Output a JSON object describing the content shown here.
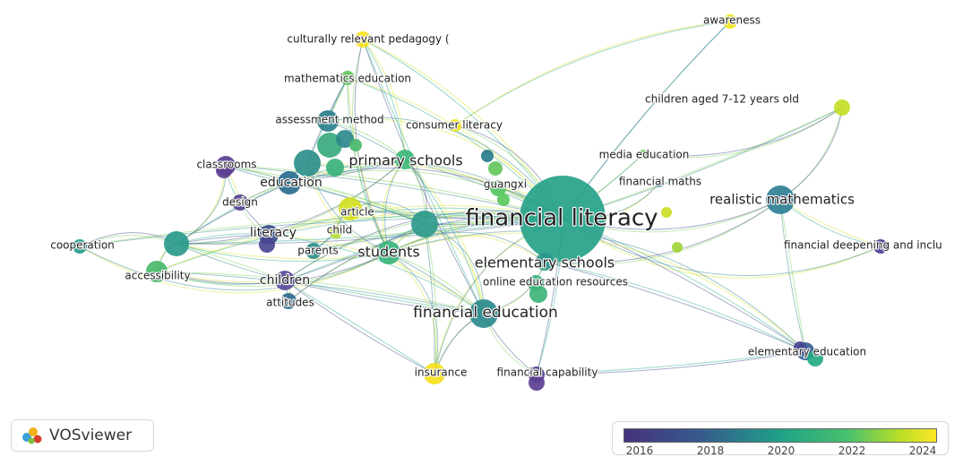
{
  "app": {
    "name": "VOSviewer",
    "logo_icon": "vosviewer-logo-icon"
  },
  "palette": {
    "2016": "#46327e",
    "2018": "#365c8d",
    "2020": "#1fa187",
    "2022": "#4ac16d",
    "2024": "#fde725",
    "edge_colors": [
      "#3f4a8a",
      "#2e7f8e",
      "#22a884",
      "#7ad151",
      "#d6e21e"
    ]
  },
  "color_scale": {
    "min_year": 2015.6,
    "max_year": 2024.3,
    "ticks": [
      "2016",
      "2018",
      "2020",
      "2022",
      "2024"
    ]
  },
  "network": {
    "nodes": [
      {
        "id": "financial-literacy",
        "label": "financial literacy",
        "color": "#26a289",
        "label_size": "xl"
      },
      {
        "id": "financial-education",
        "label": "financial education",
        "color": "#2a8a8c",
        "label_size": "l"
      },
      {
        "id": "elementary-schools",
        "label": "elementary schools",
        "color": "#2c968b",
        "label_size": "l"
      },
      {
        "id": "primary-schools",
        "label": "primary schools",
        "color": "#3cb779",
        "label_size": "l"
      },
      {
        "id": "students",
        "label": "students",
        "color": "#35b47b",
        "label_size": "l"
      },
      {
        "id": "realistic-mathematics",
        "label": "realistic mathematics",
        "color": "#2f7f95",
        "label_size": "l"
      },
      {
        "id": "education",
        "label": "education",
        "color": "#2a6c8e",
        "label_size": "m"
      },
      {
        "id": "literacy",
        "label": "literacy",
        "color": "#3a4e8c",
        "label_size": "m"
      },
      {
        "id": "children",
        "label": "children",
        "color": "#5b4a9c",
        "label_size": "m"
      },
      {
        "id": "awareness",
        "label": "awareness",
        "color": "#efe51a",
        "label_size": "s"
      },
      {
        "id": "culturally-relevant-pedagogy",
        "label": "culturally relevant pedagogy (",
        "color": "#f6e11b",
        "label_size": "s"
      },
      {
        "id": "mathematics-education",
        "label": "mathematics education",
        "color": "#5fc65d",
        "label_size": "s"
      },
      {
        "id": "children-aged",
        "label": "children aged 7-12 years old",
        "color": "#c6de26",
        "label_size": "s"
      },
      {
        "id": "assessment-method",
        "label": "assessment method",
        "color": "#2d7f8d",
        "label_size": "s"
      },
      {
        "id": "consumer-literacy",
        "label": "consumer literacy",
        "color": "#f2e21e",
        "label_size": "s"
      },
      {
        "id": "media-education",
        "label": "media education",
        "color": "#6ac85a",
        "label_size": "s"
      },
      {
        "id": "classrooms",
        "label": "classrooms",
        "color": "#5a3f93",
        "label_size": "s"
      },
      {
        "id": "guangxi",
        "label": "guangxi",
        "color": "#56c462",
        "label_size": "s"
      },
      {
        "id": "financial-maths",
        "label": "financial maths",
        "color": "#2f7a8e",
        "label_size": "s"
      },
      {
        "id": "design",
        "label": "design",
        "color": "#52418f",
        "label_size": "s"
      },
      {
        "id": "article",
        "label": "article",
        "color": "#d2e01f",
        "label_size": "s"
      },
      {
        "id": "child",
        "label": "child",
        "color": "#b7db2b",
        "label_size": "s"
      },
      {
        "id": "cooperation",
        "label": "cooperation",
        "color": "#1f9a87",
        "label_size": "s"
      },
      {
        "id": "parents",
        "label": "parents",
        "color": "#2a8c8a",
        "label_size": "s"
      },
      {
        "id": "financial-deepening",
        "label": "financial deepening and inclu",
        "color": "#4a3f92",
        "label_size": "s"
      },
      {
        "id": "accessibility",
        "label": "accessibility",
        "color": "#4ab96c",
        "label_size": "s"
      },
      {
        "id": "online-education-resources",
        "label": "online education resources",
        "color": "#3aae80",
        "label_size": "s"
      },
      {
        "id": "attitudes",
        "label": "attitudes",
        "color": "#2d6c8e",
        "label_size": "s"
      },
      {
        "id": "elementary-education",
        "label": "elementary education",
        "color": "#3a5f96",
        "label_size": "s"
      },
      {
        "id": "insurance",
        "label": "insurance",
        "color": "#f5df1c",
        "label_size": "s"
      },
      {
        "id": "financial-capability",
        "label": "financial capability",
        "color": "#52418f",
        "label_size": "s"
      },
      {
        "id": "hub-left",
        "label": "",
        "color": "#2a9a8b",
        "label_size": "none"
      },
      {
        "id": "hub-center",
        "label": "",
        "color": "#2f9a8b",
        "label_size": "none"
      },
      {
        "id": "cluster-a",
        "label": "",
        "color": "#2d8f8b",
        "label_size": "none"
      },
      {
        "id": "cluster-b",
        "label": "",
        "color": "#3aaa7e",
        "label_size": "none"
      },
      {
        "id": "cluster-c",
        "label": "",
        "color": "#2c8a8c",
        "label_size": "none"
      },
      {
        "id": "cluster-d",
        "label": "",
        "color": "#3bb27b",
        "label_size": "none"
      },
      {
        "id": "cluster-e",
        "label": "",
        "color": "#4ab96c",
        "label_size": "none"
      },
      {
        "id": "purple-a",
        "label": "",
        "color": "#5c3f93",
        "label_size": "none"
      },
      {
        "id": "purple-b",
        "label": "",
        "color": "#4a4690",
        "label_size": "none"
      },
      {
        "id": "small-teal",
        "label": "",
        "color": "#277b8c",
        "label_size": "none"
      },
      {
        "id": "small-green",
        "label": "",
        "color": "#63c75c",
        "label_size": "none"
      },
      {
        "id": "small-green-b",
        "label": "",
        "color": "#5ac85f",
        "label_size": "none"
      },
      {
        "id": "small-green-c",
        "label": "",
        "color": "#3fb47a",
        "label_size": "none"
      },
      {
        "id": "small-yellow",
        "label": "",
        "color": "#c9dd25",
        "label_size": "none"
      },
      {
        "id": "small-yellow-b",
        "label": "",
        "color": "#9fd437",
        "label_size": "none"
      },
      {
        "id": "ins-purple",
        "label": "",
        "color": "#5b3f94",
        "label_size": "none"
      },
      {
        "id": "elem-purple",
        "label": "",
        "color": "#48448f",
        "label_size": "none"
      },
      {
        "id": "elem-green",
        "label": "",
        "color": "#23a983",
        "label_size": "none"
      }
    ]
  }
}
